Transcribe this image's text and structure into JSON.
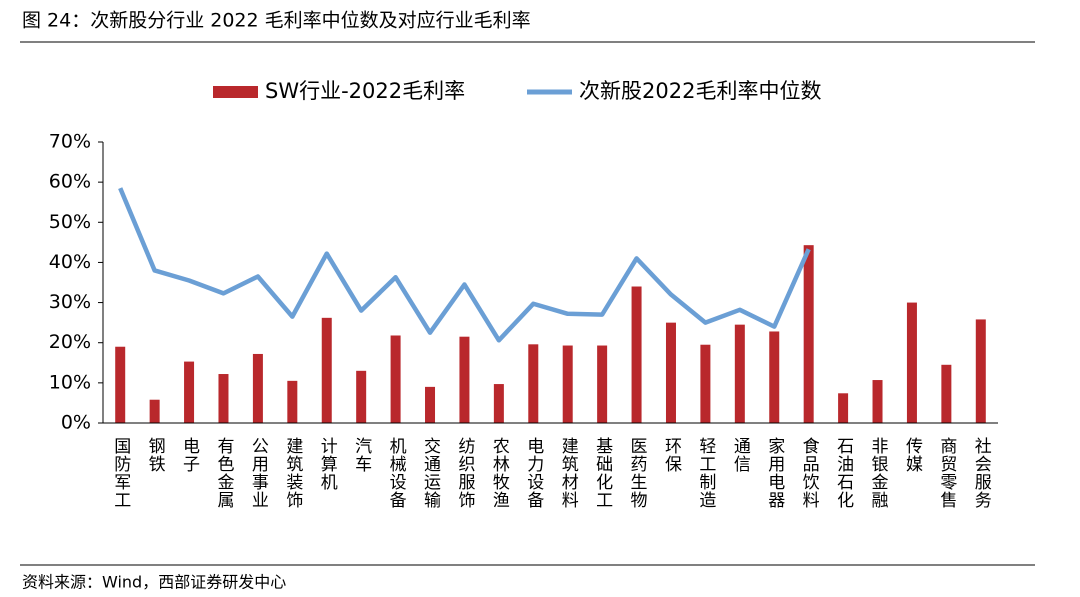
{
  "title": "图 24：次新股分行业 2022 毛利率中位数及对应行业毛利率",
  "source": "资料来源：Wind，西部证券研发中心",
  "chart_data": {
    "type": "bar_line",
    "categories": [
      "国防军工",
      "钢铁",
      "电子",
      "有色金属",
      "公用事业",
      "建筑装饰",
      "计算机",
      "汽车",
      "机械设备",
      "交通运输",
      "纺织服饰",
      "农林牧渔",
      "电力设备",
      "建筑材料",
      "基础化工",
      "医药生物",
      "环保",
      "轻工制造",
      "通信",
      "家用电器",
      "食品饮料",
      "石油石化",
      "非银金融",
      "传媒",
      "商贸零售",
      "社会服务"
    ],
    "series": [
      {
        "name": "SW行业-2022毛利率",
        "type": "bar",
        "color": "#b9282c",
        "values": [
          19,
          5.8,
          15.3,
          12.2,
          17.2,
          10.5,
          26.2,
          13,
          21.8,
          9,
          21.5,
          9.7,
          19.6,
          19.3,
          19.3,
          34,
          25,
          19.5,
          24.5,
          22.8,
          44.3,
          7.4,
          10.7,
          30,
          14.5,
          25.8
        ]
      },
      {
        "name": "次新股2022毛利率中位数",
        "type": "line",
        "color": "#6b9fd5",
        "values": [
          58.5,
          38,
          35.5,
          32.3,
          36.5,
          26.5,
          42.2,
          28,
          36.3,
          22.5,
          34.5,
          20.6,
          29.7,
          27.2,
          27,
          41,
          32,
          25,
          28.2,
          24,
          43.3,
          null,
          null,
          null,
          null,
          null
        ]
      }
    ],
    "ylim": [
      0,
      70
    ],
    "yticks": [
      {
        "value": 0,
        "label": "0%"
      },
      {
        "value": 10,
        "label": "10%"
      },
      {
        "value": 20,
        "label": "20%"
      },
      {
        "value": 30,
        "label": "30%"
      },
      {
        "value": 40,
        "label": "40%"
      },
      {
        "value": 50,
        "label": "50%"
      },
      {
        "value": 60,
        "label": "60%"
      },
      {
        "value": 70,
        "label": "70%"
      }
    ],
    "legend": "top"
  }
}
